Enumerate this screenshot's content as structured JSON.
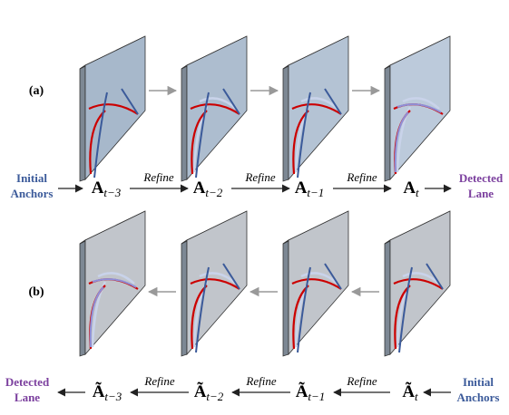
{
  "rows": [
    {
      "label": "(a)",
      "left": [
        "Initial",
        "Anchors"
      ],
      "right": [
        "Detected",
        "Lane"
      ],
      "states": [
        {
          "base": "A",
          "sub": "t−3"
        },
        {
          "base": "A",
          "sub": "t−2"
        },
        {
          "base": "A",
          "sub": "t−1"
        },
        {
          "base": "A",
          "sub": "t"
        }
      ],
      "steps": [
        "Refine",
        "Refine",
        "Refine"
      ]
    },
    {
      "label": "(b)",
      "left": [
        "Detected",
        "Lane"
      ],
      "right": [
        "Initial",
        "Anchors"
      ],
      "states": [
        {
          "base": "Ã",
          "sub": "t−3"
        },
        {
          "base": "Ã",
          "sub": "t−2"
        },
        {
          "base": "Ã",
          "sub": "t−1"
        },
        {
          "base": "Ã",
          "sub": "t"
        }
      ],
      "steps": [
        "Refine",
        "Refine",
        "Refine"
      ]
    }
  ]
}
